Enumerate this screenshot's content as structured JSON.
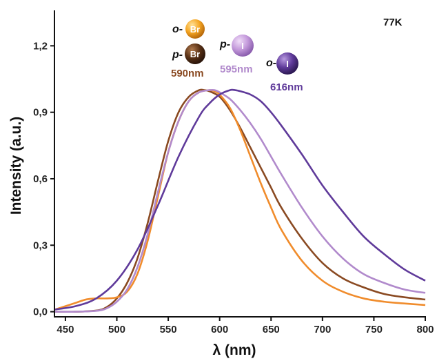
{
  "chart_data": {
    "type": "line",
    "xlabel": "λ (nm)",
    "ylabel": "Intensity (a.u.)",
    "xlim": [
      440,
      800
    ],
    "ylim": [
      -0.02,
      1.36
    ],
    "xticks": [
      450,
      500,
      550,
      600,
      650,
      700,
      750,
      800
    ],
    "yticks": [
      0.0,
      0.3,
      0.6,
      0.9,
      1.2
    ],
    "ytick_labels": [
      "0,0",
      "0,3",
      "0,6",
      "0,9",
      "1,2"
    ],
    "grid": false,
    "annotation_temp": "77K",
    "series": [
      {
        "color": "#8A4A22",
        "x": [
          440,
          460,
          480,
          490,
          500,
          510,
          520,
          530,
          540,
          550,
          560,
          570,
          580,
          585,
          590,
          600,
          610,
          620,
          630,
          640,
          650,
          660,
          680,
          700,
          720,
          740,
          760,
          780,
          800
        ],
        "y": [
          0.0,
          0.0,
          0.005,
          0.02,
          0.06,
          0.13,
          0.24,
          0.4,
          0.59,
          0.77,
          0.9,
          0.97,
          1.0,
          1.0,
          0.995,
          0.97,
          0.91,
          0.83,
          0.74,
          0.65,
          0.56,
          0.47,
          0.33,
          0.22,
          0.15,
          0.11,
          0.08,
          0.065,
          0.055
        ]
      },
      {
        "color": "#F08C2C",
        "x": [
          440,
          460,
          470,
          480,
          490,
          500,
          510,
          520,
          530,
          540,
          550,
          560,
          570,
          580,
          590,
          595,
          600,
          610,
          620,
          630,
          640,
          650,
          660,
          680,
          700,
          720,
          740,
          760,
          780,
          800
        ],
        "y": [
          0.01,
          0.04,
          0.055,
          0.06,
          0.06,
          0.065,
          0.09,
          0.17,
          0.32,
          0.52,
          0.72,
          0.86,
          0.95,
          0.99,
          1.0,
          0.995,
          0.98,
          0.92,
          0.82,
          0.7,
          0.58,
          0.47,
          0.37,
          0.23,
          0.14,
          0.09,
          0.06,
          0.045,
          0.037,
          0.03
        ]
      },
      {
        "color": "#B18ACC",
        "x": [
          440,
          460,
          480,
          490,
          500,
          510,
          520,
          530,
          540,
          550,
          560,
          570,
          580,
          590,
          595,
          600,
          610,
          620,
          630,
          640,
          650,
          660,
          680,
          700,
          720,
          740,
          760,
          780,
          800
        ],
        "y": [
          0.0,
          0.0,
          0.004,
          0.015,
          0.045,
          0.1,
          0.2,
          0.35,
          0.54,
          0.72,
          0.86,
          0.95,
          0.99,
          1.0,
          1.0,
          0.99,
          0.96,
          0.91,
          0.85,
          0.78,
          0.7,
          0.62,
          0.47,
          0.34,
          0.24,
          0.17,
          0.13,
          0.1,
          0.085
        ]
      },
      {
        "color": "#5F3A9A",
        "x": [
          440,
          460,
          480,
          500,
          520,
          540,
          560,
          580,
          590,
          600,
          610,
          615,
          620,
          630,
          640,
          650,
          660,
          680,
          700,
          720,
          740,
          760,
          780,
          800
        ],
        "y": [
          0.01,
          0.025,
          0.06,
          0.14,
          0.28,
          0.48,
          0.7,
          0.88,
          0.94,
          0.98,
          1.0,
          1.0,
          0.995,
          0.98,
          0.95,
          0.9,
          0.84,
          0.71,
          0.57,
          0.45,
          0.34,
          0.26,
          0.19,
          0.14
        ]
      }
    ],
    "labels": [
      {
        "prefix": "o-",
        "atom": "Br",
        "color": "#F5A623"
      },
      {
        "prefix": "p-",
        "atom": "Br",
        "color": "#4A2A12",
        "wavelength": "590nm",
        "wl_color": "#8A4A22"
      },
      {
        "prefix": "p-",
        "atom": "I",
        "color": "#C49ADB",
        "wavelength": "595nm",
        "wl_color": "#B18ACC"
      },
      {
        "prefix": "o-",
        "atom": "I",
        "color": "#5F3A9A",
        "wavelength": "616nm",
        "wl_color": "#5F3A9A"
      }
    ]
  }
}
